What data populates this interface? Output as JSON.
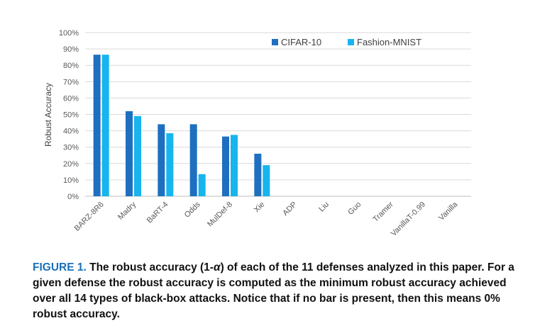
{
  "colors": {
    "cifar": "#1f6fc0",
    "fashion": "#18b4ee",
    "grid": "#d9d9d9",
    "axis": "#bfbfbf",
    "caption_label": "#1a6fb8"
  },
  "chart_data": {
    "type": "bar",
    "categories": [
      "BARZ-8R6",
      "Madry",
      "BaRT-4",
      "Odds",
      "MulDef-8",
      "Xie",
      "ADP",
      "Liu",
      "Guo",
      "Tramer",
      "VanillaT-0.99",
      "Vanilla"
    ],
    "series": [
      {
        "name": "CIFAR-10",
        "values": [
          86.5,
          52,
          44,
          44,
          36.5,
          26,
          0,
          0,
          0,
          0,
          0,
          0
        ]
      },
      {
        "name": "Fashion-MNIST",
        "values": [
          86.5,
          49,
          38.5,
          13.5,
          37.5,
          19,
          0,
          0,
          0,
          0,
          0,
          0
        ]
      }
    ],
    "ylabel": "Robust Accuracy",
    "xlabel": "",
    "ylim": [
      0,
      100
    ],
    "yticks": [
      "0%",
      "10%",
      "20%",
      "30%",
      "40%",
      "50%",
      "60%",
      "70%",
      "80%",
      "90%",
      "100%"
    ],
    "grid": true,
    "legend_position": "top-right"
  },
  "caption": {
    "label": "FIGURE 1.",
    "text_before_alpha": "The robust accuracy (1-",
    "alpha": "α",
    "text_after_alpha": ") of each of the 11 defenses analyzed in this paper. For a given defense the robust accuracy is computed as the minimum robust accuracy achieved over all 14 types of black-box attacks. Notice that if no bar is present, then this means 0% robust accuracy."
  }
}
